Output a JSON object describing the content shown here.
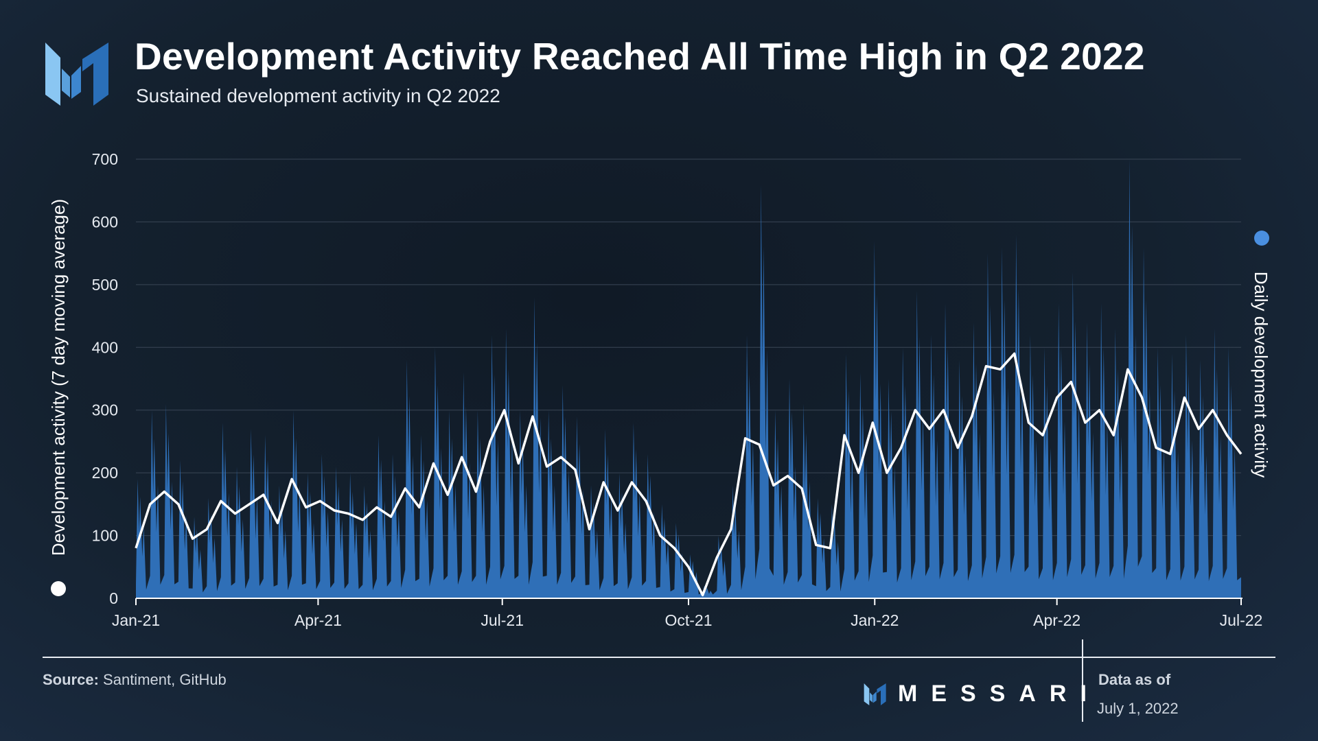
{
  "header": {
    "title": "Development Activity Reached All Time High in Q2 2022",
    "subtitle": "Sustained development activity in Q2 2022"
  },
  "footer": {
    "source_label": "Source:",
    "source_text": "Santiment, GitHub",
    "brand": "MESSARI",
    "asof_label": "Data as of",
    "asof_date": "July 1, 2022"
  },
  "colors": {
    "daily_fill": "#2f6fb7",
    "moving_avg_line": "#ffffff",
    "grid": "#3a4656",
    "left_marker": "#ffffff",
    "right_marker": "#4a8fe0"
  },
  "chart_data": {
    "type": "area",
    "xlabel": "",
    "ylabel": "Development activity (7 day moving average)",
    "y2label": "Daily development activity",
    "ylim": [
      0,
      700
    ],
    "yticks": [
      0,
      100,
      200,
      300,
      400,
      500,
      600,
      700
    ],
    "xlim": [
      "2021-01-01",
      "2022-07-01"
    ],
    "xticks": [
      {
        "label": "Jan-21",
        "date": "2021-01-01"
      },
      {
        "label": "Apr-21",
        "date": "2021-04-01"
      },
      {
        "label": "Jul-21",
        "date": "2021-07-01"
      },
      {
        "label": "Oct-21",
        "date": "2021-10-01"
      },
      {
        "label": "Jan-22",
        "date": "2022-01-01"
      },
      {
        "label": "Apr-22",
        "date": "2022-04-01"
      },
      {
        "label": "Jul-22",
        "date": "2022-07-01"
      }
    ],
    "grid": true,
    "series": [
      {
        "name": "Development activity (7 day moving average)",
        "kind": "line",
        "x": [
          "2021-01-01",
          "2021-01-08",
          "2021-01-15",
          "2021-01-22",
          "2021-01-29",
          "2021-02-05",
          "2021-02-12",
          "2021-02-19",
          "2021-02-26",
          "2021-03-05",
          "2021-03-12",
          "2021-03-19",
          "2021-03-26",
          "2021-04-02",
          "2021-04-09",
          "2021-04-16",
          "2021-04-23",
          "2021-04-30",
          "2021-05-07",
          "2021-05-14",
          "2021-05-21",
          "2021-05-28",
          "2021-06-04",
          "2021-06-11",
          "2021-06-18",
          "2021-06-25",
          "2021-07-02",
          "2021-07-09",
          "2021-07-16",
          "2021-07-23",
          "2021-07-30",
          "2021-08-06",
          "2021-08-13",
          "2021-08-20",
          "2021-08-27",
          "2021-09-03",
          "2021-09-10",
          "2021-09-17",
          "2021-09-24",
          "2021-10-01",
          "2021-10-08",
          "2021-10-15",
          "2021-10-22",
          "2021-10-29",
          "2021-11-05",
          "2021-11-12",
          "2021-11-19",
          "2021-11-26",
          "2021-12-03",
          "2021-12-10",
          "2021-12-17",
          "2021-12-24",
          "2021-12-31",
          "2022-01-07",
          "2022-01-14",
          "2022-01-21",
          "2022-01-28",
          "2022-02-04",
          "2022-02-11",
          "2022-02-18",
          "2022-02-25",
          "2022-03-04",
          "2022-03-11",
          "2022-03-18",
          "2022-03-25",
          "2022-04-01",
          "2022-04-08",
          "2022-04-15",
          "2022-04-22",
          "2022-04-29",
          "2022-05-06",
          "2022-05-13",
          "2022-05-20",
          "2022-05-27",
          "2022-06-03",
          "2022-06-10",
          "2022-06-17",
          "2022-06-24",
          "2022-07-01"
        ],
        "values": [
          80,
          150,
          170,
          150,
          95,
          110,
          155,
          135,
          150,
          165,
          120,
          190,
          145,
          155,
          140,
          135,
          125,
          145,
          130,
          175,
          145,
          215,
          165,
          225,
          170,
          250,
          300,
          215,
          290,
          210,
          225,
          205,
          110,
          185,
          140,
          185,
          155,
          100,
          80,
          50,
          5,
          65,
          110,
          255,
          245,
          180,
          195,
          175,
          85,
          80,
          260,
          200,
          280,
          200,
          240,
          300,
          270,
          300,
          240,
          290,
          370,
          365,
          390,
          280,
          260,
          320,
          345,
          280,
          300,
          260,
          365,
          320,
          240,
          230,
          320,
          270,
          300,
          260,
          230
        ]
      },
      {
        "name": "Daily development activity",
        "kind": "area",
        "x": [
          "2021-01-01",
          "2021-01-08",
          "2021-01-15",
          "2021-01-22",
          "2021-01-29",
          "2021-02-05",
          "2021-02-12",
          "2021-02-19",
          "2021-02-26",
          "2021-03-05",
          "2021-03-12",
          "2021-03-19",
          "2021-03-26",
          "2021-04-02",
          "2021-04-09",
          "2021-04-16",
          "2021-04-23",
          "2021-04-30",
          "2021-05-07",
          "2021-05-14",
          "2021-05-21",
          "2021-05-28",
          "2021-06-04",
          "2021-06-11",
          "2021-06-18",
          "2021-06-25",
          "2021-07-02",
          "2021-07-09",
          "2021-07-16",
          "2021-07-23",
          "2021-07-30",
          "2021-08-06",
          "2021-08-13",
          "2021-08-20",
          "2021-08-27",
          "2021-09-03",
          "2021-09-10",
          "2021-09-17",
          "2021-09-24",
          "2021-10-01",
          "2021-10-08",
          "2021-10-15",
          "2021-10-22",
          "2021-10-29",
          "2021-11-05",
          "2021-11-12",
          "2021-11-19",
          "2021-11-26",
          "2021-12-03",
          "2021-12-10",
          "2021-12-17",
          "2021-12-24",
          "2021-12-31",
          "2022-01-07",
          "2022-01-14",
          "2022-01-21",
          "2022-01-28",
          "2022-02-04",
          "2022-02-11",
          "2022-02-18",
          "2022-02-25",
          "2022-03-04",
          "2022-03-11",
          "2022-03-18",
          "2022-03-25",
          "2022-04-01",
          "2022-04-08",
          "2022-04-15",
          "2022-04-22",
          "2022-04-29",
          "2022-05-06",
          "2022-05-13",
          "2022-05-20",
          "2022-05-27",
          "2022-06-03",
          "2022-06-10",
          "2022-06-17",
          "2022-06-24",
          "2022-07-01"
        ],
        "peaks": [
          190,
          300,
          310,
          220,
          130,
          160,
          280,
          210,
          270,
          260,
          180,
          300,
          200,
          230,
          210,
          200,
          180,
          260,
          230,
          380,
          260,
          400,
          300,
          360,
          300,
          420,
          430,
          300,
          480,
          300,
          340,
          290,
          180,
          270,
          200,
          280,
          230,
          150,
          120,
          70,
          20,
          100,
          180,
          420,
          660,
          300,
          350,
          310,
          160,
          150,
          390,
          360,
          570,
          350,
          400,
          490,
          420,
          470,
          380,
          440,
          550,
          560,
          580,
          420,
          400,
          470,
          520,
          440,
          470,
          430,
          700,
          560,
          400,
          390,
          420,
          380,
          430,
          400,
          280
        ]
      }
    ]
  }
}
